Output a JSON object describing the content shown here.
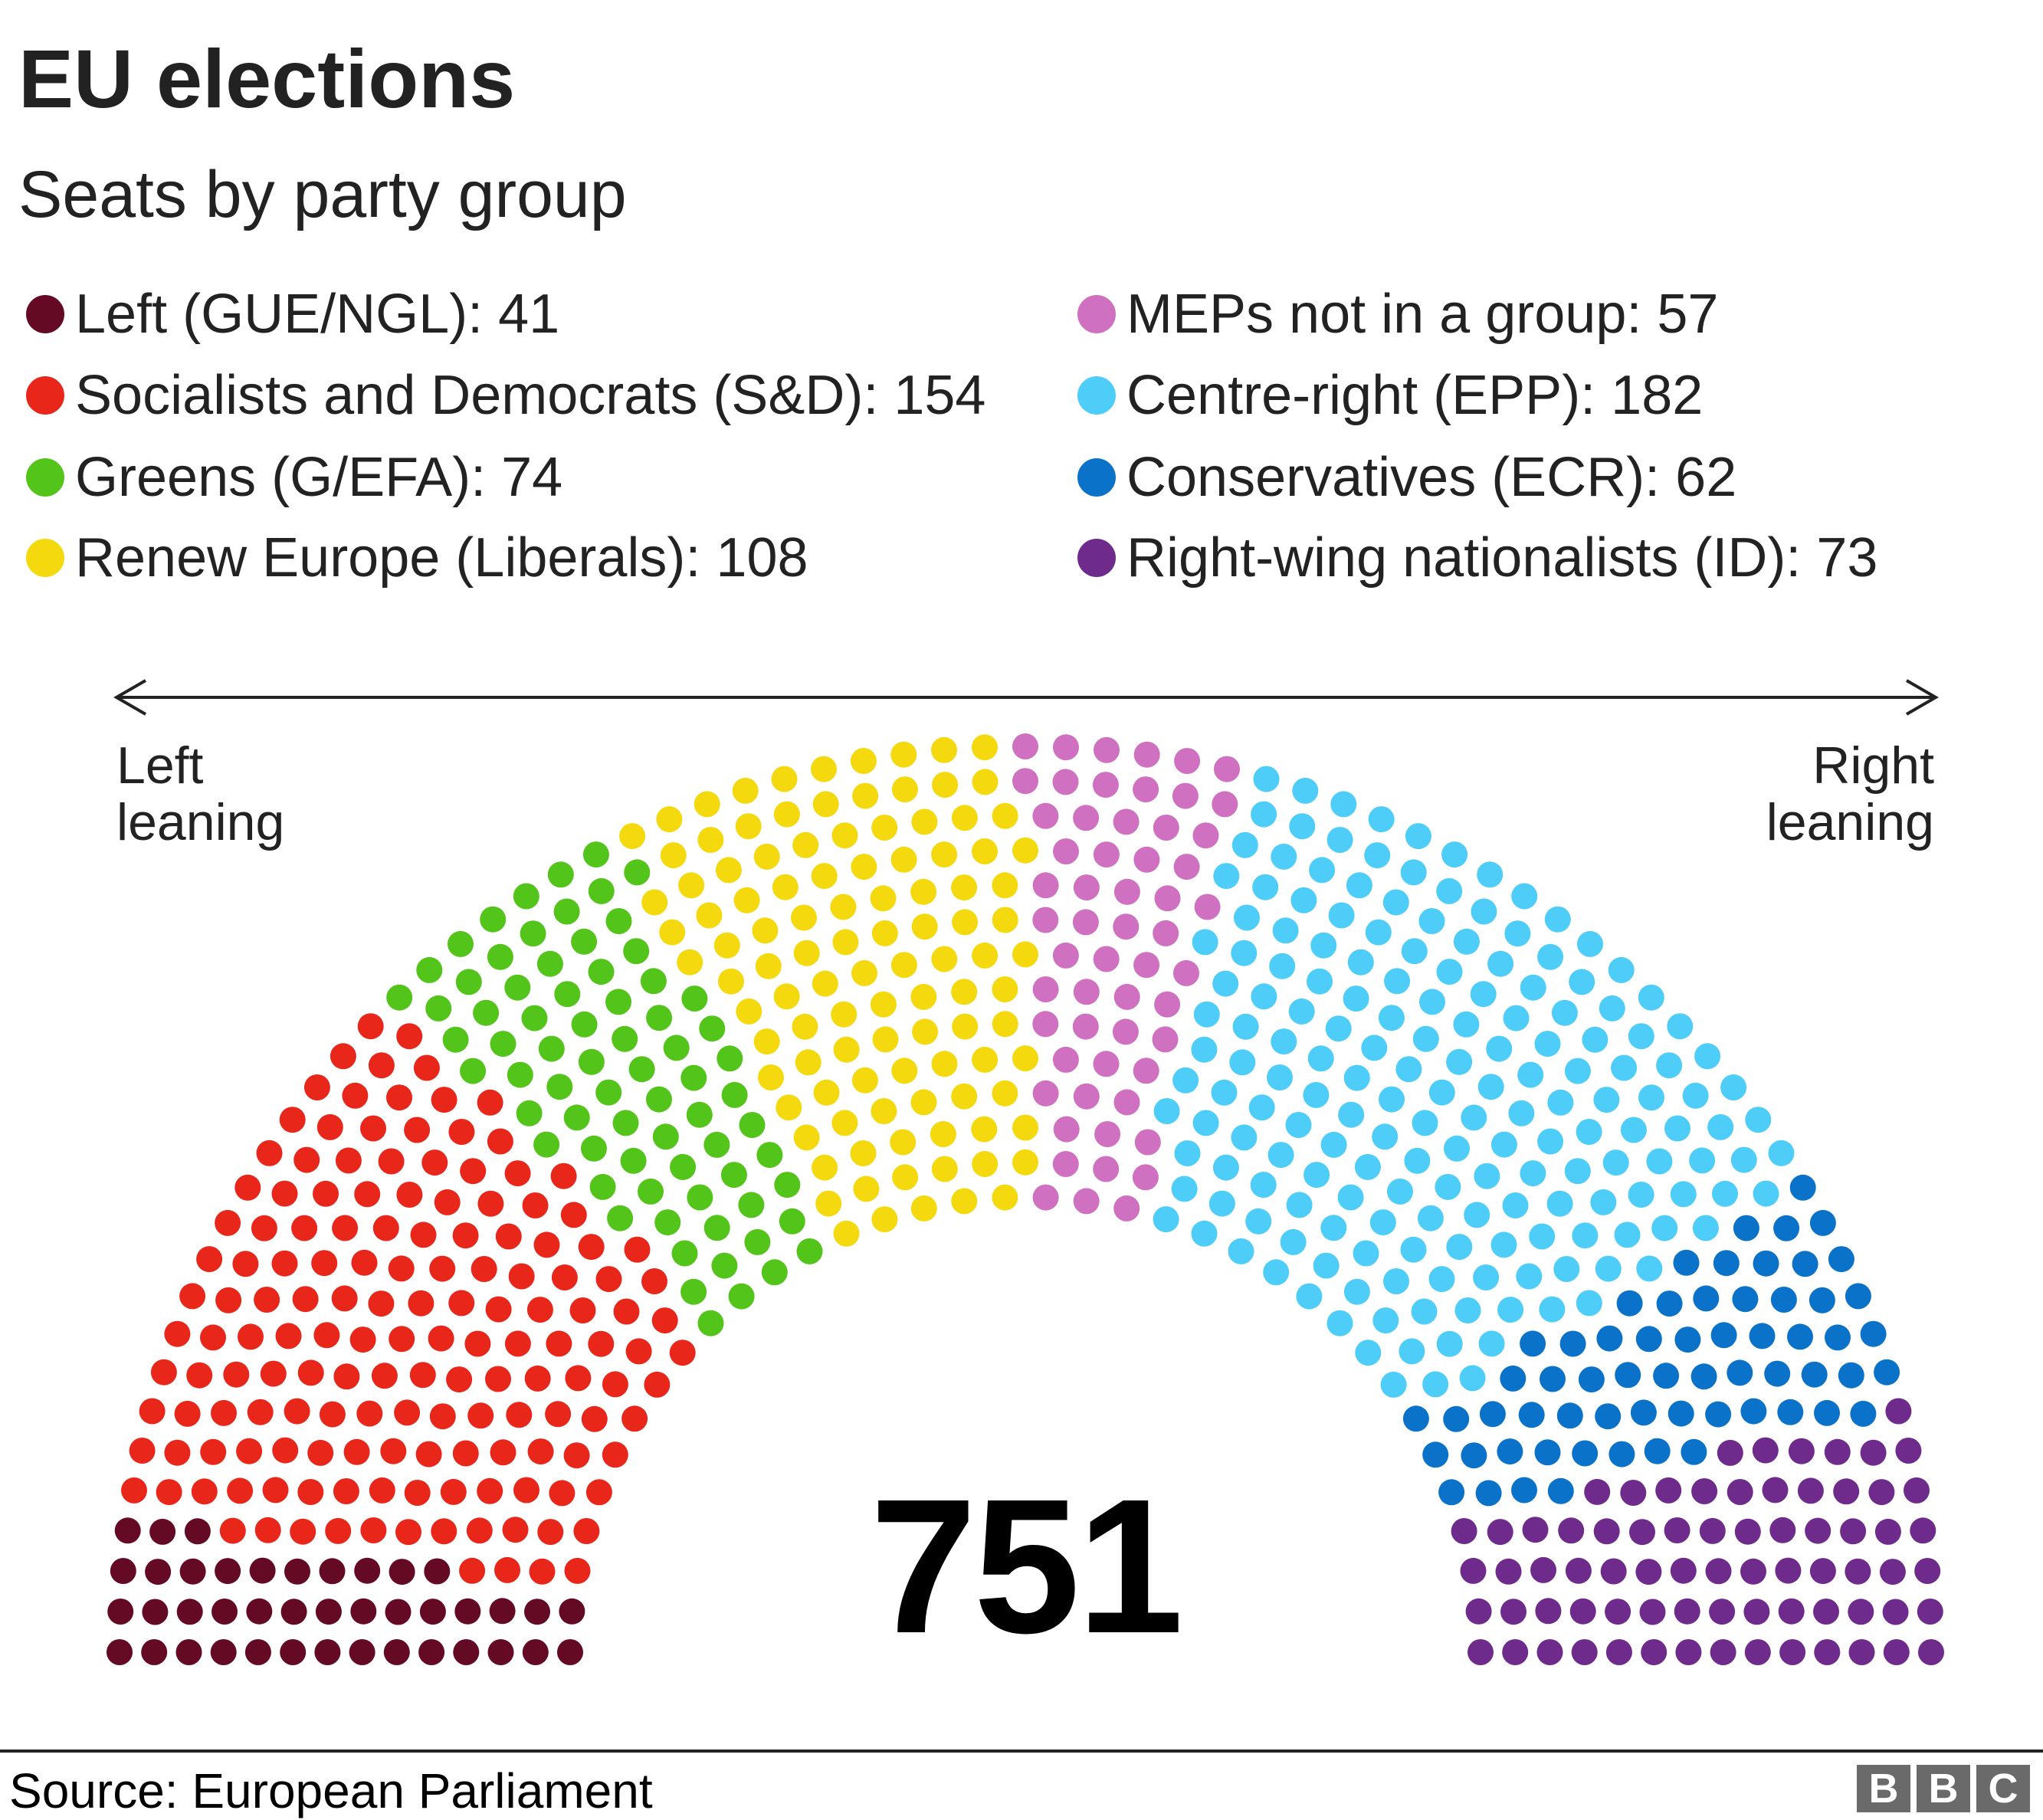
{
  "header": {
    "title": "EU elections",
    "subtitle": "Seats by party group"
  },
  "footer": {
    "source": "Source: European Parliament",
    "logo": "BBC"
  },
  "chart_data": {
    "type": "parliament",
    "title": "EU elections",
    "subtitle": "Seats by party group",
    "total_label": "751",
    "axis": {
      "left_label": "Left\nleaning",
      "right_label": "Right\nleaning"
    },
    "legend_placement": "top",
    "series": [
      {
        "name": "Left (GUE/NGL)",
        "value": 41,
        "label": "Left (GUE/NGL): 41",
        "color": "#650a24"
      },
      {
        "name": "Socialists and Democrats (S&D)",
        "value": 154,
        "label": "Socialists and Democrats (S&D): 154",
        "color": "#e8261a"
      },
      {
        "name": "Greens (G/EFA)",
        "value": 74,
        "label": "Greens (G/EFA): 74",
        "color": "#52c41a"
      },
      {
        "name": "Renew Europe (Liberals)",
        "value": 108,
        "label": "Renew Europe (Liberals): 108",
        "color": "#f5d90f"
      },
      {
        "name": "MEPs not in a group",
        "value": 57,
        "label": "MEPs not in a group: 57",
        "color": "#d070c0"
      },
      {
        "name": "Centre-right (EPP)",
        "value": 182,
        "label": "Centre-right (EPP): 182",
        "color": "#4dcdf7"
      },
      {
        "name": "Conservatives (ECR)",
        "value": 62,
        "label": "Conservatives (ECR): 62",
        "color": "#0a72c8"
      },
      {
        "name": "Right-wing nationalists (ID)",
        "value": 73,
        "label": "Right-wing nationalists (ID): 73",
        "color": "#6e2b8c"
      }
    ]
  }
}
